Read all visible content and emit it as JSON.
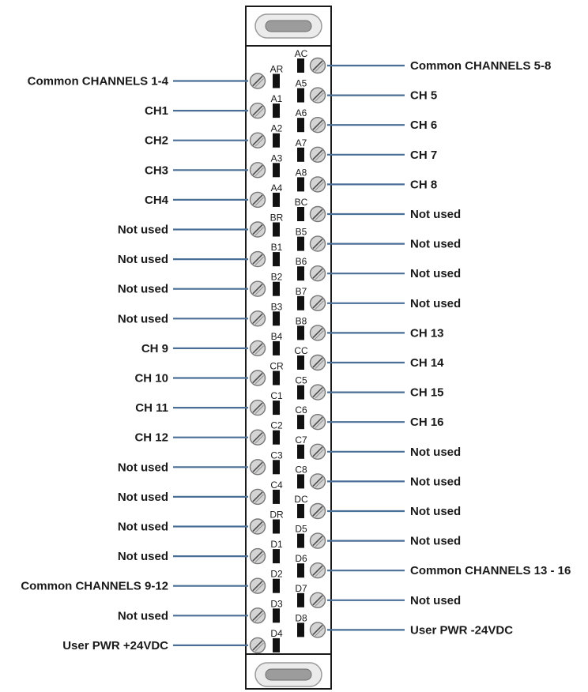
{
  "left_terminals": [
    {
      "pin": "AR",
      "label": "Common CHANNELS 1-4"
    },
    {
      "pin": "A1",
      "label": "CH1"
    },
    {
      "pin": "A2",
      "label": "CH2"
    },
    {
      "pin": "A3",
      "label": "CH3"
    },
    {
      "pin": "A4",
      "label": "CH4"
    },
    {
      "pin": "BR",
      "label": "Not used"
    },
    {
      "pin": "B1",
      "label": "Not used"
    },
    {
      "pin": "B2",
      "label": "Not used"
    },
    {
      "pin": "B3",
      "label": "Not used"
    },
    {
      "pin": "B4",
      "label": "CH 9"
    },
    {
      "pin": "CR",
      "label": "CH 10"
    },
    {
      "pin": "C1",
      "label": "CH 11"
    },
    {
      "pin": "C2",
      "label": "CH 12"
    },
    {
      "pin": "C3",
      "label": "Not used"
    },
    {
      "pin": "C4",
      "label": "Not used"
    },
    {
      "pin": "DR",
      "label": "Not used"
    },
    {
      "pin": "D1",
      "label": "Not used"
    },
    {
      "pin": "D2",
      "label": "Common CHANNELS 9-12"
    },
    {
      "pin": "D3",
      "label": "Not used"
    },
    {
      "pin": "D4",
      "label": "User PWR +24VDC"
    }
  ],
  "right_terminals": [
    {
      "pin": "AC",
      "label": "Common CHANNELS 5-8"
    },
    {
      "pin": "A5",
      "label": "CH 5"
    },
    {
      "pin": "A6",
      "label": "CH 6"
    },
    {
      "pin": "A7",
      "label": "CH 7"
    },
    {
      "pin": "A8",
      "label": "CH 8"
    },
    {
      "pin": "BC",
      "label": "Not used"
    },
    {
      "pin": "B5",
      "label": "Not used"
    },
    {
      "pin": "B6",
      "label": "Not used"
    },
    {
      "pin": "B7",
      "label": "Not used"
    },
    {
      "pin": "B8",
      "label": "CH 13"
    },
    {
      "pin": "CC",
      "label": "CH 14"
    },
    {
      "pin": "C5",
      "label": "CH 15"
    },
    {
      "pin": "C6",
      "label": "CH 16"
    },
    {
      "pin": "C7",
      "label": "Not used"
    },
    {
      "pin": "C8",
      "label": "Not used"
    },
    {
      "pin": "DC",
      "label": "Not used"
    },
    {
      "pin": "D5",
      "label": "Not used"
    },
    {
      "pin": "D6",
      "label": "Common CHANNELS 13 - 16"
    },
    {
      "pin": "D7",
      "label": "Not used"
    },
    {
      "pin": "D8",
      "label": "User PWR -24VDC"
    }
  ],
  "colors": {
    "wire": "#4a6f97",
    "block_outline": "#1a1a1a",
    "screw_fill": "#d4d4d4",
    "screw_stroke": "#777777",
    "contact": "#111111",
    "text": "#1a1a1a"
  }
}
